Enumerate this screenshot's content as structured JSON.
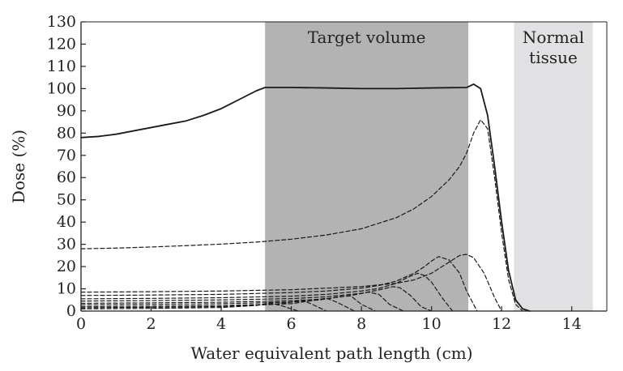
{
  "chart_data": {
    "type": "line",
    "title": "",
    "xlabel": "Water equivalent path length (cm)",
    "ylabel": "Dose (%)",
    "xlim": [
      0,
      15
    ],
    "ylim": [
      0,
      130
    ],
    "x_ticks": [
      0,
      2,
      4,
      6,
      8,
      10,
      12,
      14
    ],
    "y_ticks": [
      0,
      10,
      20,
      30,
      40,
      50,
      60,
      70,
      80,
      90,
      100,
      110,
      120,
      130
    ],
    "grid": false,
    "regions": [
      {
        "label": "Target volume",
        "x_start": 5.25,
        "x_end": 11.05,
        "color": "#b3b3b3"
      },
      {
        "label": "Normal tissue",
        "label_lines": [
          "Normal",
          "tissue"
        ],
        "x_start": 12.35,
        "x_end": 14.6,
        "color": "#e1e1e4"
      }
    ],
    "series": [
      {
        "style": "solid",
        "x": [
          0,
          0.5,
          1,
          1.5,
          2,
          2.5,
          3,
          3.5,
          4,
          4.5,
          5,
          5.25,
          6,
          7,
          8,
          9,
          10,
          11,
          11.2,
          11.4,
          11.6,
          11.8,
          12,
          12.2,
          12.4,
          12.6,
          12.8
        ],
        "y": [
          78,
          78.5,
          79.5,
          81,
          82.5,
          84,
          85.5,
          88,
          91,
          95,
          99,
          100.5,
          100.5,
          100.3,
          100,
          100,
          100.3,
          100.5,
          102,
          100,
          88,
          65,
          40,
          18,
          5,
          1,
          0
        ]
      },
      {
        "style": "dashed",
        "x": [
          0,
          1,
          2,
          3,
          4,
          5,
          6,
          7,
          8,
          9,
          9.5,
          10,
          10.5,
          10.8,
          11,
          11.2,
          11.4,
          11.6,
          11.8,
          12,
          12.2,
          12.4,
          12.6
        ],
        "y": [
          28,
          28.3,
          28.8,
          29.4,
          30.1,
          31,
          32.3,
          34.2,
          37,
          42,
          46,
          51.5,
          59,
          65,
          71,
          80,
          86,
          82,
          60,
          35,
          14,
          3,
          0
        ]
      },
      {
        "style": "dashed",
        "x": [
          0,
          2,
          4,
          6,
          8,
          9,
          9.5,
          10,
          10.5,
          10.8,
          11,
          11.2,
          11.5,
          11.8,
          12
        ],
        "y": [
          8.5,
          8.7,
          9,
          9.6,
          11,
          12.5,
          14,
          17,
          22,
          25,
          25.5,
          24,
          17,
          6,
          0
        ]
      },
      {
        "style": "dashed",
        "x": [
          0,
          2,
          4,
          6,
          7,
          8,
          8.5,
          9,
          9.5,
          9.8,
          10,
          10.2,
          10.5,
          10.8,
          11,
          11.3
        ],
        "y": [
          7,
          7.2,
          7.5,
          8.3,
          9,
          10.3,
          11.5,
          13.5,
          17,
          20,
          22.5,
          24.5,
          23,
          17,
          9,
          0
        ]
      },
      {
        "style": "dashed",
        "x": [
          0,
          2,
          4,
          6,
          7,
          8,
          8.5,
          9,
          9.3,
          9.6,
          9.8,
          10,
          10.3,
          10.6
        ],
        "y": [
          5.5,
          5.7,
          6,
          6.7,
          7.5,
          9,
          10.2,
          12.5,
          15,
          17,
          16,
          13,
          6,
          0
        ]
      },
      {
        "style": "dashed",
        "x": [
          0,
          2,
          4,
          6,
          7,
          8,
          8.5,
          8.9,
          9.1,
          9.4,
          9.7,
          10
        ],
        "y": [
          4.5,
          4.7,
          5,
          5.6,
          6.4,
          8,
          9.5,
          11,
          10.5,
          7,
          2,
          0
        ]
      },
      {
        "style": "dashed",
        "x": [
          0,
          2,
          4,
          6,
          7,
          7.7,
          8.2,
          8.5,
          8.8,
          9.2
        ],
        "y": [
          3.5,
          3.7,
          4,
          4.6,
          5.5,
          7,
          8.5,
          7.5,
          3,
          0
        ]
      },
      {
        "style": "dashed",
        "x": [
          0,
          2,
          4,
          6,
          6.8,
          7.4,
          7.7,
          8,
          8.4
        ],
        "y": [
          2.8,
          3,
          3.3,
          4,
          5,
          6.5,
          6.8,
          3,
          0
        ]
      },
      {
        "style": "dashed",
        "x": [
          0,
          2,
          4,
          6,
          6.5,
          7,
          7.3,
          7.8
        ],
        "y": [
          2,
          2.2,
          2.5,
          3.3,
          4.5,
          5.8,
          4,
          0
        ]
      },
      {
        "style": "dashed",
        "x": [
          0,
          2,
          4,
          5.5,
          6,
          6.3,
          6.6,
          7
        ],
        "y": [
          1.5,
          1.7,
          2,
          3,
          4,
          5,
          3,
          0
        ]
      },
      {
        "style": "dashed",
        "x": [
          0,
          2,
          4,
          5,
          5.4,
          5.7,
          6.2
        ],
        "y": [
          1,
          1.2,
          1.6,
          2.5,
          3.6,
          2.5,
          0
        ]
      }
    ]
  }
}
